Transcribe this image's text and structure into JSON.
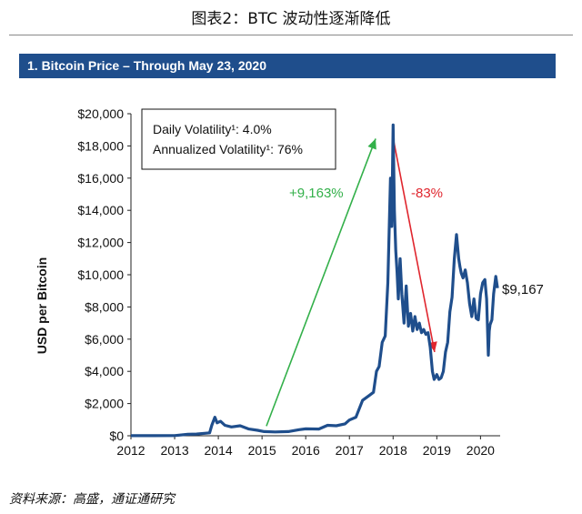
{
  "page": {
    "figure_title": "图表2：BTC 波动性逐渐降低",
    "banner_title": "1. Bitcoin Price – Through May 23, 2020",
    "source": "资料来源：高盛，通证通研究"
  },
  "chart_data": {
    "type": "line",
    "title": "1. Bitcoin Price – Through May 23, 2020",
    "ylabel": "USD per Bitcoin",
    "xlabel": "",
    "xlim": [
      2012,
      2020.45
    ],
    "ylim": [
      0,
      20000
    ],
    "x_ticks": [
      2012,
      2013,
      2014,
      2015,
      2016,
      2017,
      2018,
      2019,
      2020
    ],
    "x_tick_labels": [
      "2012",
      "2013",
      "2014",
      "2015",
      "2016",
      "2017",
      "2018",
      "2019",
      "2020"
    ],
    "y_ticks": [
      0,
      2000,
      4000,
      6000,
      8000,
      10000,
      12000,
      14000,
      16000,
      18000,
      20000
    ],
    "y_tick_labels": [
      "$0",
      "$2,000",
      "$4,000",
      "$6,000",
      "$8,000",
      "$10,000",
      "$12,000",
      "$14,000",
      "$16,000",
      "$18,000",
      "$20,000"
    ],
    "grid": false,
    "line_color": "#1f4e8c",
    "series": [
      {
        "name": "",
        "x": [
          2012.0,
          2012.5,
          2013.0,
          2013.3,
          2013.5,
          2013.8,
          2013.85,
          2013.92,
          2013.97,
          2014.05,
          2014.15,
          2014.3,
          2014.5,
          2014.7,
          2014.9,
          2015.05,
          2015.3,
          2015.6,
          2015.85,
          2016.0,
          2016.3,
          2016.5,
          2016.7,
          2016.9,
          2017.0,
          2017.15,
          2017.3,
          2017.45,
          2017.55,
          2017.62,
          2017.68,
          2017.75,
          2017.82,
          2017.88,
          2017.94,
          2017.97,
          2018.0,
          2018.03,
          2018.06,
          2018.09,
          2018.12,
          2018.16,
          2018.2,
          2018.25,
          2018.3,
          2018.35,
          2018.4,
          2018.45,
          2018.5,
          2018.55,
          2018.6,
          2018.65,
          2018.7,
          2018.75,
          2018.8,
          2018.85,
          2018.9,
          2018.94,
          2019.0,
          2019.05,
          2019.1,
          2019.15,
          2019.2,
          2019.25,
          2019.3,
          2019.35,
          2019.4,
          2019.45,
          2019.5,
          2019.53,
          2019.56,
          2019.6,
          2019.65,
          2019.7,
          2019.75,
          2019.8,
          2019.85,
          2019.9,
          2019.95,
          2020.0,
          2020.05,
          2020.1,
          2020.14,
          2020.18,
          2020.2,
          2020.22,
          2020.26,
          2020.3,
          2020.35,
          2020.39
        ],
        "values": [
          5,
          7,
          13,
          90,
          110,
          180,
          650,
          1150,
          800,
          900,
          650,
          550,
          620,
          420,
          340,
          260,
          240,
          260,
          380,
          430,
          420,
          650,
          620,
          740,
          980,
          1150,
          2200,
          2500,
          2700,
          4000,
          4300,
          5800,
          6200,
          9500,
          16000,
          13000,
          19300,
          14000,
          11500,
          10200,
          8500,
          11000,
          8800,
          7000,
          9300,
          6800,
          7600,
          6500,
          7400,
          6600,
          7000,
          6400,
          6600,
          6300,
          6400,
          5500,
          4000,
          3500,
          3800,
          3500,
          3600,
          4000,
          5200,
          5800,
          7700,
          8600,
          11000,
          12500,
          11000,
          10500,
          10100,
          9800,
          10300,
          9500,
          8200,
          7400,
          8500,
          7300,
          7200,
          8800,
          9500,
          9700,
          8500,
          5000,
          6500,
          6900,
          7200,
          8800,
          9900,
          9167
        ]
      }
    ],
    "annotations": {
      "volatility_box": {
        "line1": "Daily Volatility¹: 4.0%",
        "line2": "Annualized Volatility¹: 76%"
      },
      "rise_label": "+9,163%",
      "rise_color": "#33b04a",
      "fall_label": "-83%",
      "fall_color": "#e0262e",
      "end_label": "$9,167"
    }
  }
}
